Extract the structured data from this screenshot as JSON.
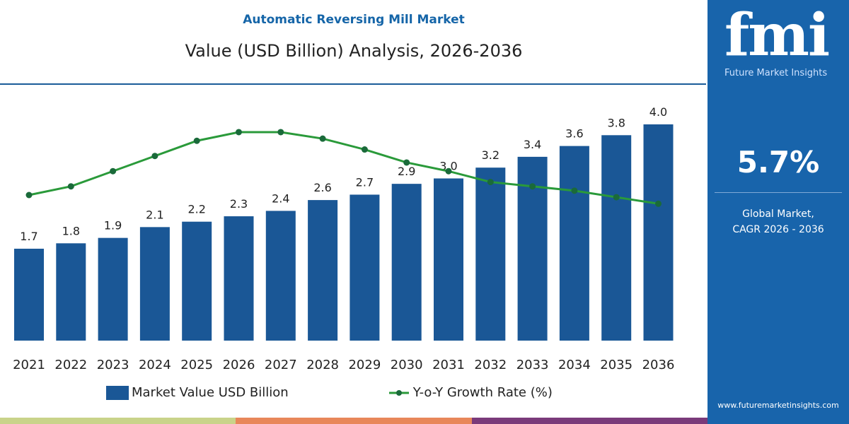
{
  "header": {
    "title": "Automatic Reversing Mill Market",
    "subtitle": "Value (USD Billion) Analysis, 2026-2036"
  },
  "sidebar": {
    "logo_text": "fmi",
    "logo_subtext": "Future Market Insights",
    "cagr": "5.7%",
    "cagr_label_1": "Global Market,",
    "cagr_label_2": "CAGR 2026 - 2036",
    "url": "www.futuremarketinsights.com",
    "bg_color": "#1864ab"
  },
  "legend": {
    "bar": "Market Value USD Billion",
    "line": "Y-o-Y Growth Rate (%)"
  },
  "chart_data": {
    "type": "bar",
    "categories": [
      "2021",
      "2022",
      "2023",
      "2024",
      "2025",
      "2026",
      "2027",
      "2028",
      "2029",
      "2030",
      "2031",
      "2032",
      "2033",
      "2034",
      "2035",
      "2036"
    ],
    "series": [
      {
        "name": "Market Value USD Billion",
        "type": "bar",
        "color": "#1a5796",
        "values": [
          1.7,
          1.8,
          1.9,
          2.1,
          2.2,
          2.3,
          2.4,
          2.6,
          2.7,
          2.9,
          3.0,
          3.2,
          3.4,
          3.6,
          3.8,
          4.0
        ],
        "labels": [
          "1.7",
          "1.8",
          "1.9",
          "2.1",
          "2.2",
          "2.3",
          "2.4",
          "2.6",
          "2.7",
          "2.9",
          "3.0",
          "3.2",
          "3.4",
          "3.6",
          "3.8",
          "4.0"
        ]
      },
      {
        "name": "Y-o-Y Growth Rate (%)",
        "type": "line",
        "color": "#2a9a3a",
        "values": [
          4.8,
          5.2,
          5.9,
          6.6,
          7.3,
          7.7,
          7.7,
          7.4,
          6.9,
          6.3,
          5.9,
          5.4,
          5.2,
          5.0,
          4.7,
          4.4
        ]
      }
    ],
    "legend_position": "bottom",
    "grid": false
  },
  "stripes": [
    "#c9d38a",
    "#e8875a",
    "#7a3a7a"
  ]
}
